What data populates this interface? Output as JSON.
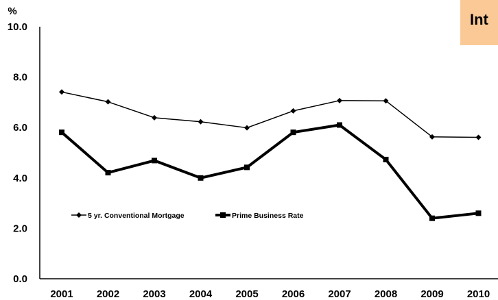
{
  "chart_data": {
    "type": "line",
    "title": "Int",
    "ylabel": "%",
    "xlabel": "",
    "x": [
      "2001",
      "2002",
      "2003",
      "2004",
      "2005",
      "2006",
      "2007",
      "2008",
      "2009",
      "2010"
    ],
    "ylim": [
      0,
      10
    ],
    "yticks": [
      "0.0",
      "2.0",
      "4.0",
      "6.0",
      "8.0",
      "10.0"
    ],
    "grid": false,
    "legend_position": "center-left",
    "series": [
      {
        "name": "5 yr. Conventional Mortgage",
        "values": [
          7.41,
          7.02,
          6.39,
          6.23,
          5.99,
          6.66,
          7.07,
          7.06,
          5.63,
          5.61
        ],
        "color": "#000000",
        "marker": "diamond",
        "style": "thin"
      },
      {
        "name": "Prime Business Rate",
        "values": [
          5.81,
          4.21,
          4.69,
          4.0,
          4.42,
          5.81,
          6.1,
          4.73,
          2.4,
          2.6
        ],
        "color": "#000000",
        "marker": "square",
        "style": "thick"
      }
    ]
  }
}
